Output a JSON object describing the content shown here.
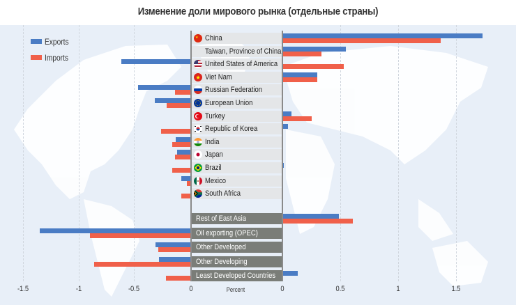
{
  "title": "Изменение доли мирового рынка (отдельные страны)",
  "colors": {
    "exports": "#4a7cc4",
    "imports": "#f0604a",
    "background": "#e8eff8",
    "label_bg": "#e4e6e8",
    "group_bg": "#7a7d78"
  },
  "legend": {
    "exports": "Exports",
    "imports": "Imports"
  },
  "axis": {
    "left_ticks": [
      "-1.5",
      "-1",
      "-0.5",
      "0"
    ],
    "right_ticks": [
      "0",
      "0.5",
      "1",
      "1.5"
    ],
    "center_label": "Percent"
  },
  "rows": [
    {
      "label": "China",
      "flag": "china-flag",
      "group": false
    },
    {
      "label": "Taiwan, Province of China",
      "flag": null,
      "group": false
    },
    {
      "label": "United States of America",
      "flag": "usa-flag",
      "group": false
    },
    {
      "label": "Viet Nam",
      "flag": "vietnam-flag",
      "group": false
    },
    {
      "label": "Russian Federation",
      "flag": "russia-flag",
      "group": false
    },
    {
      "label": "European Union",
      "flag": "eu-flag",
      "group": false
    },
    {
      "label": "Turkey",
      "flag": "turkey-flag",
      "group": false
    },
    {
      "label": "Republic of Korea",
      "flag": "korea-flag",
      "group": false
    },
    {
      "label": "India",
      "flag": "india-flag",
      "group": false
    },
    {
      "label": "Japan",
      "flag": "japan-flag",
      "group": false
    },
    {
      "label": "Brazil",
      "flag": "brazil-flag",
      "group": false
    },
    {
      "label": "Mexico",
      "flag": "mexico-flag",
      "group": false
    },
    {
      "label": "South Africa",
      "flag": "south-africa-flag",
      "group": false
    },
    {
      "label": "Rest of East Asia",
      "flag": null,
      "group": true
    },
    {
      "label": "Oil exporting (OPEC)",
      "flag": null,
      "group": true
    },
    {
      "label": "Other Developed",
      "flag": null,
      "group": true
    },
    {
      "label": "Other Developing",
      "flag": null,
      "group": true
    },
    {
      "label": "Least Developed Countries",
      "flag": null,
      "group": true
    }
  ],
  "chart_data": {
    "type": "bar",
    "orientation": "horizontal",
    "title": "Изменение доли мирового рынка (отдельные страны)",
    "xlabel": "Percent",
    "ylabel": "",
    "xlim": [
      -1.5,
      1.75
    ],
    "grid": true,
    "legend_position": "top-left",
    "categories": [
      "China",
      "Taiwan, Province of China",
      "United States of America",
      "Viet Nam",
      "Russian Federation",
      "European Union",
      "Turkey",
      "Republic of Korea",
      "India",
      "Japan",
      "Brazil",
      "Mexico",
      "South Africa",
      "Rest of East Asia",
      "Oil exporting (OPEC)",
      "Other Developed",
      "Other Developing",
      "Least Developed Countries"
    ],
    "series": [
      {
        "name": "Exports",
        "color": "#4a7cc4",
        "values": [
          1.73,
          0.55,
          -0.62,
          0.3,
          -0.47,
          -0.32,
          0.08,
          0.05,
          -0.13,
          -0.12,
          0.01,
          -0.08,
          0.0,
          0.49,
          -1.35,
          -0.31,
          -0.28,
          0.13
        ]
      },
      {
        "name": "Imports",
        "color": "#f0604a",
        "values": [
          1.37,
          0.34,
          0.53,
          0.3,
          -0.14,
          -0.21,
          0.25,
          -0.26,
          -0.16,
          -0.14,
          -0.16,
          -0.03,
          -0.08,
          0.61,
          -0.9,
          -0.29,
          -0.86,
          -0.22
        ]
      }
    ]
  }
}
